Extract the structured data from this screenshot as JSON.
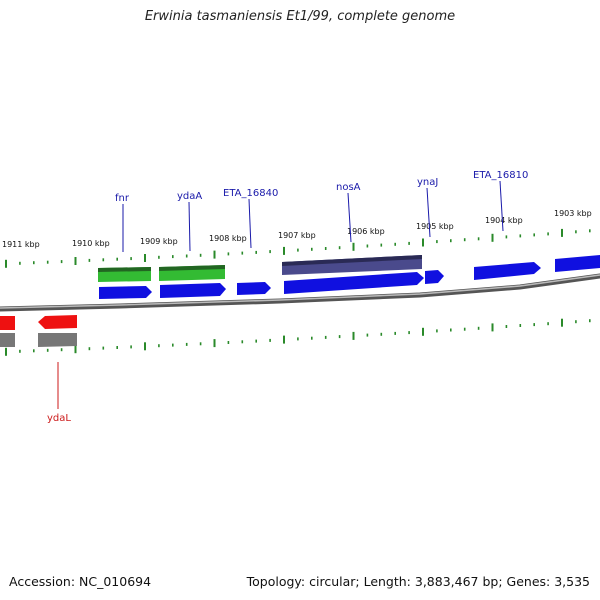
{
  "title": "Erwinia tasmaniensis Et1/99, complete genome",
  "footer": {
    "accession": "Accession: NC_010694",
    "summary": "Topology: circular; Length: 3,883,467 bp; Genes: 3,535"
  },
  "colors": {
    "forward_gene": "#1010e0",
    "reverse_gene": "#ee1111",
    "rna_feature": "#33bb33",
    "misc_feature": "#4a4a8c",
    "pseudo_feature": "#777777",
    "tick": "#2a8a2a",
    "forward_label": "#1a1aaa",
    "reverse_label": "#cc1a1a"
  },
  "kbp_labels": [
    "1911 kbp",
    "1910 kbp",
    "1909 kbp",
    "1908 kbp",
    "1907 kbp",
    "1906 kbp",
    "1905 kbp",
    "1904 kbp",
    "1903 kbp"
  ],
  "gene_labels": [
    "fnr",
    "ydaA",
    "ETA_16840",
    "nosA",
    "ynaJ",
    "ETA_16810",
    "ydaL"
  ]
}
